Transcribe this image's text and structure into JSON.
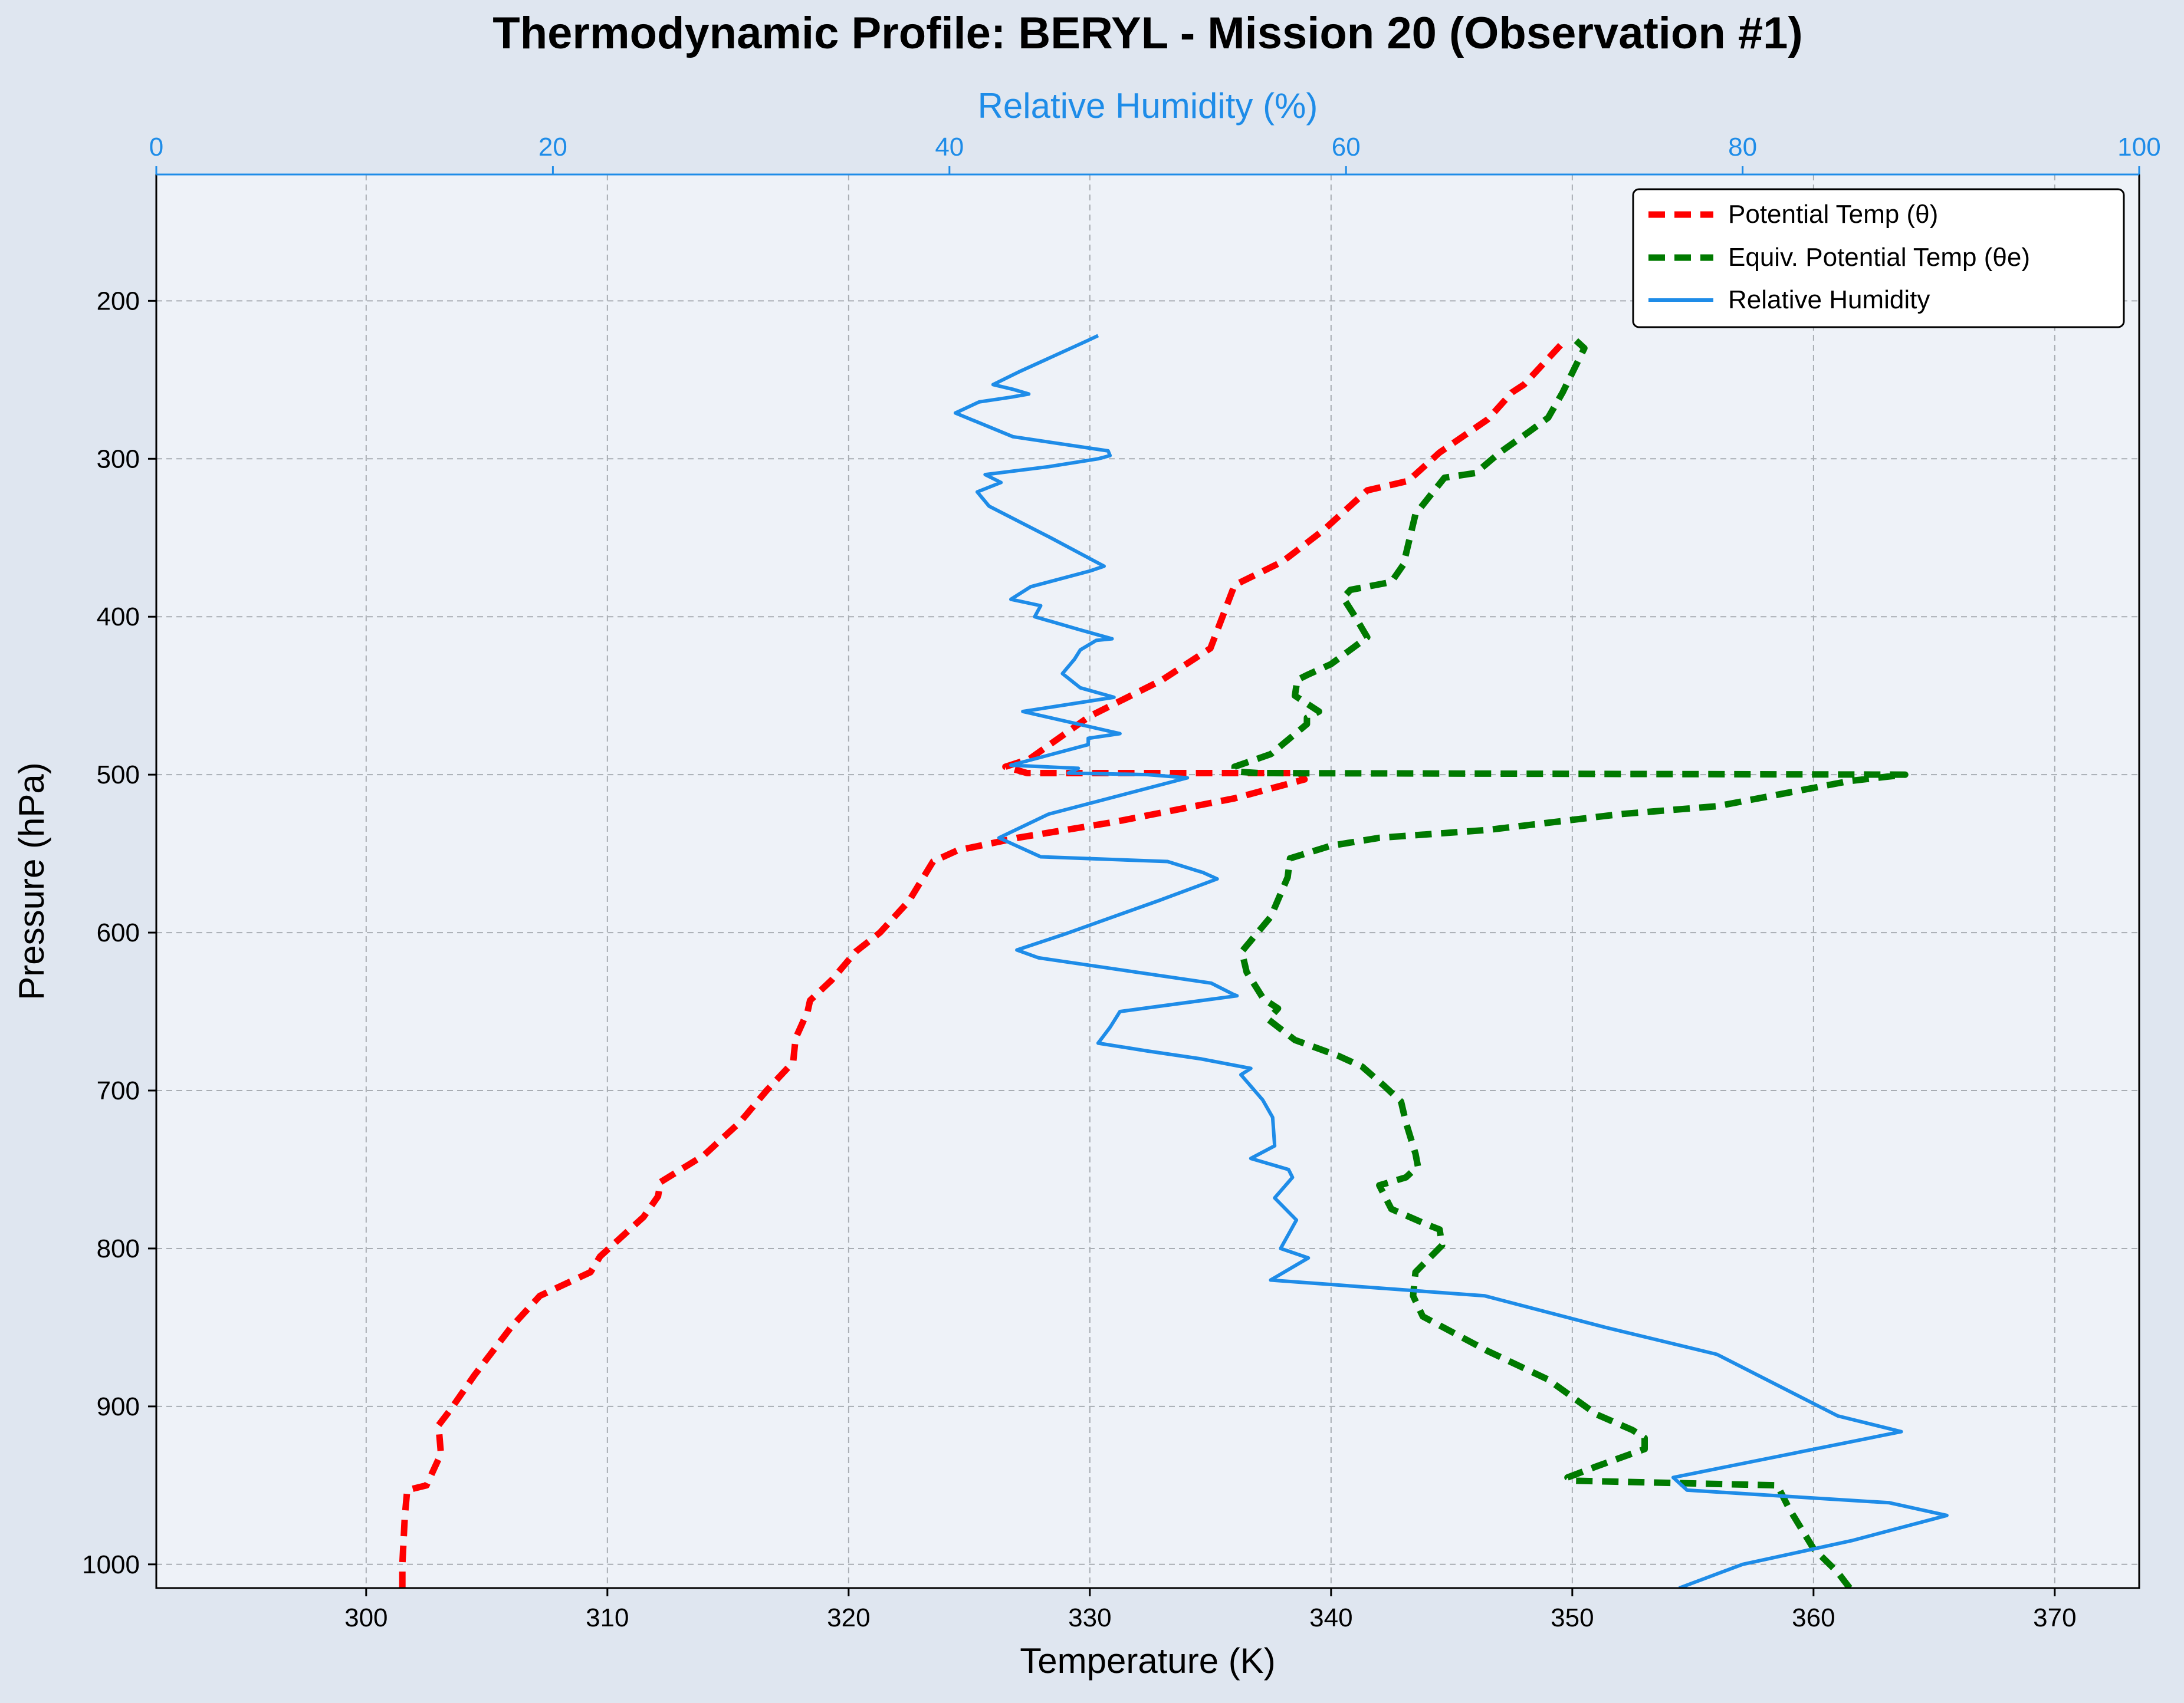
{
  "chart_data": {
    "type": "line",
    "title": "Thermodynamic Profile:  BERYL - Mission 20 (Observation #1)",
    "xlabel": "Temperature (K)",
    "ylabel": "Pressure (hPa)",
    "x2label": "Relative Humidity (%)",
    "xlim": [
      291.3,
      373.5
    ],
    "ylim": [
      1015,
      120
    ],
    "x2lim": [
      0,
      100
    ],
    "y_inverted": true,
    "grid": true,
    "legend_position": "upper right",
    "x_ticks": [
      300,
      310,
      320,
      330,
      340,
      350,
      360,
      370
    ],
    "y_ticks": [
      200,
      300,
      400,
      500,
      600,
      700,
      800,
      900,
      1000
    ],
    "x2_ticks": [
      0,
      20,
      40,
      60,
      80,
      100
    ],
    "colors": {
      "theta": "#ff0000",
      "theta_e": "#007a00",
      "rh": "#1e8ce8",
      "rh_axis": "#1e8ce8",
      "plot_bg": "#eef2f8",
      "figure_bg": "#dfe6f0"
    },
    "series": [
      {
        "name": "Potential Temp (θ)",
        "axis": "temperature",
        "style": "dashed",
        "points": [
          [
            301.5,
            1015
          ],
          [
            301.5,
            1000
          ],
          [
            301.6,
            970
          ],
          [
            301.7,
            953
          ],
          [
            302.5,
            950
          ],
          [
            303.1,
            930
          ],
          [
            303.0,
            912
          ],
          [
            303.5,
            902
          ],
          [
            304.5,
            880
          ],
          [
            306.0,
            850
          ],
          [
            307.2,
            830
          ],
          [
            309.3,
            815
          ],
          [
            309.7,
            805
          ],
          [
            311.5,
            780
          ],
          [
            312.1,
            767
          ],
          [
            312.2,
            758
          ],
          [
            314.0,
            741
          ],
          [
            315.5,
            720
          ],
          [
            316.6,
            700
          ],
          [
            317.7,
            682
          ],
          [
            317.8,
            667
          ],
          [
            318.3,
            650
          ],
          [
            318.4,
            643
          ],
          [
            319.3,
            630
          ],
          [
            320.3,
            612
          ],
          [
            321.3,
            600
          ],
          [
            322.5,
            580
          ],
          [
            323.5,
            555
          ],
          [
            324.5,
            548
          ],
          [
            327.0,
            540
          ],
          [
            331.0,
            530
          ],
          [
            336.0,
            515
          ],
          [
            338.9,
            503
          ],
          [
            338.7,
            499
          ],
          [
            327.4,
            499
          ],
          [
            326.5,
            495
          ],
          [
            327.5,
            490
          ],
          [
            330.0,
            463
          ],
          [
            333.0,
            440
          ],
          [
            335.0,
            420
          ],
          [
            335.3,
            408
          ],
          [
            336.0,
            380
          ],
          [
            338.0,
            365
          ],
          [
            339.7,
            345
          ],
          [
            341.5,
            320
          ],
          [
            343.2,
            314
          ],
          [
            344.5,
            296
          ],
          [
            346.5,
            275
          ],
          [
            347.5,
            258
          ],
          [
            348.0,
            253
          ],
          [
            349.7,
            225
          ]
        ]
      },
      {
        "name": "Equiv. Potential Temp (θe)",
        "axis": "temperature",
        "style": "dashed",
        "points": [
          [
            361.5,
            1015
          ],
          [
            361.0,
            1005
          ],
          [
            360.0,
            990
          ],
          [
            359.0,
            965
          ],
          [
            358.5,
            950
          ],
          [
            350.0,
            947
          ],
          [
            349.8,
            945
          ],
          [
            351.0,
            938
          ],
          [
            353.0,
            927
          ],
          [
            353.0,
            920
          ],
          [
            352.5,
            915
          ],
          [
            351.0,
            905
          ],
          [
            349.0,
            883
          ],
          [
            346.5,
            865
          ],
          [
            343.8,
            843
          ],
          [
            343.4,
            830
          ],
          [
            343.5,
            815
          ],
          [
            344.6,
            798
          ],
          [
            344.5,
            788
          ],
          [
            344.0,
            785
          ],
          [
            342.5,
            775
          ],
          [
            342.0,
            760
          ],
          [
            343.1,
            755
          ],
          [
            343.6,
            748
          ],
          [
            343.5,
            740
          ],
          [
            343.1,
            720
          ],
          [
            342.9,
            707
          ],
          [
            342.2,
            697
          ],
          [
            341.3,
            685
          ],
          [
            340.3,
            678
          ],
          [
            338.5,
            668
          ],
          [
            337.4,
            655
          ],
          [
            337.8,
            648
          ],
          [
            337.2,
            642
          ],
          [
            336.5,
            625
          ],
          [
            336.3,
            612
          ],
          [
            337.5,
            590
          ],
          [
            338.2,
            565
          ],
          [
            338.3,
            553
          ],
          [
            340.0,
            545
          ],
          [
            342.0,
            540
          ],
          [
            346.5,
            535
          ],
          [
            352.0,
            525
          ],
          [
            356.0,
            520
          ],
          [
            361.5,
            504
          ],
          [
            363.8,
            500
          ],
          [
            337.0,
            499
          ],
          [
            336.0,
            498
          ],
          [
            336.0,
            495
          ],
          [
            337.5,
            487
          ],
          [
            339.0,
            468
          ],
          [
            339.0,
            464
          ],
          [
            339.5,
            460
          ],
          [
            338.5,
            450
          ],
          [
            338.6,
            440
          ],
          [
            339.0,
            437
          ],
          [
            340.0,
            430
          ],
          [
            341.5,
            413
          ],
          [
            341.0,
            400
          ],
          [
            340.5,
            388
          ],
          [
            340.8,
            383
          ],
          [
            342.5,
            378
          ],
          [
            343.0,
            367
          ],
          [
            343.5,
            335
          ],
          [
            344.7,
            312
          ],
          [
            346.0,
            309
          ],
          [
            347.0,
            296
          ],
          [
            348.2,
            283
          ],
          [
            349.0,
            274
          ],
          [
            349.6,
            258
          ],
          [
            350.5,
            230
          ],
          [
            350.0,
            223
          ]
        ]
      },
      {
        "name": "Relative Humidity",
        "axis": "humidity",
        "style": "solid",
        "points": [
          [
            76.8,
            1015
          ],
          [
            80.0,
            1000
          ],
          [
            85.5,
            985
          ],
          [
            90.3,
            969
          ],
          [
            87.4,
            961
          ],
          [
            77.2,
            953
          ],
          [
            76.5,
            945
          ],
          [
            88.0,
            916
          ],
          [
            84.8,
            906
          ],
          [
            78.7,
            867
          ],
          [
            73.1,
            850
          ],
          [
            67.0,
            830
          ],
          [
            56.2,
            820
          ],
          [
            58.1,
            806
          ],
          [
            56.7,
            800
          ],
          [
            57.5,
            782
          ],
          [
            56.4,
            768
          ],
          [
            57.3,
            755
          ],
          [
            57.1,
            750
          ],
          [
            55.2,
            743
          ],
          [
            56.4,
            735
          ],
          [
            56.3,
            717
          ],
          [
            55.8,
            706
          ],
          [
            54.7,
            690
          ],
          [
            55.2,
            686
          ],
          [
            52.7,
            680
          ],
          [
            50.0,
            675
          ],
          [
            47.5,
            670
          ],
          [
            48.1,
            660
          ],
          [
            48.6,
            650
          ],
          [
            54.5,
            640
          ],
          [
            54.3,
            639
          ],
          [
            53.2,
            632
          ],
          [
            44.5,
            616
          ],
          [
            43.4,
            611
          ],
          [
            45.8,
            601
          ],
          [
            50.5,
            580
          ],
          [
            53.5,
            566
          ],
          [
            52.8,
            562
          ],
          [
            51.0,
            555
          ],
          [
            44.6,
            552
          ],
          [
            42.5,
            540
          ],
          [
            45.0,
            525
          ],
          [
            52.0,
            502
          ],
          [
            50.0,
            500
          ],
          [
            46.0,
            499
          ],
          [
            46.5,
            496
          ],
          [
            43.1,
            494
          ],
          [
            47.0,
            481
          ],
          [
            47.0,
            477
          ],
          [
            48.6,
            474
          ],
          [
            43.7,
            460
          ],
          [
            48.3,
            451
          ],
          [
            46.6,
            445
          ],
          [
            45.7,
            436
          ],
          [
            46.3,
            427
          ],
          [
            46.6,
            421
          ],
          [
            47.4,
            415
          ],
          [
            48.2,
            414
          ],
          [
            46.5,
            408
          ],
          [
            44.3,
            400
          ],
          [
            44.6,
            393
          ],
          [
            43.1,
            389
          ],
          [
            44.1,
            381
          ],
          [
            47.1,
            371
          ],
          [
            47.8,
            368
          ],
          [
            45.1,
            350
          ],
          [
            42.0,
            330
          ],
          [
            41.4,
            321
          ],
          [
            42.6,
            315
          ],
          [
            41.8,
            310
          ],
          [
            45.0,
            305
          ],
          [
            47.5,
            300
          ],
          [
            48.1,
            298
          ],
          [
            48.0,
            295
          ],
          [
            43.2,
            286
          ],
          [
            40.3,
            271
          ],
          [
            41.5,
            264
          ],
          [
            43.1,
            261
          ],
          [
            44.0,
            259
          ],
          [
            43.2,
            256
          ],
          [
            42.2,
            253
          ],
          [
            43.5,
            245
          ],
          [
            47.0,
            225
          ],
          [
            47.5,
            222
          ]
        ]
      }
    ]
  }
}
